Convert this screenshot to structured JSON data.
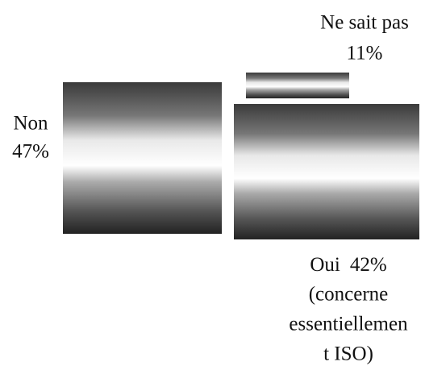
{
  "chart_data": {
    "type": "pie",
    "categories": [
      "Non",
      "Ne sait pas",
      "Oui"
    ],
    "values": [
      47,
      11,
      42
    ],
    "value_labels": [
      "47%",
      "11%",
      "42%"
    ],
    "annotation": [
      "(concerne",
      "essentiellemen",
      "t ISO)"
    ]
  }
}
